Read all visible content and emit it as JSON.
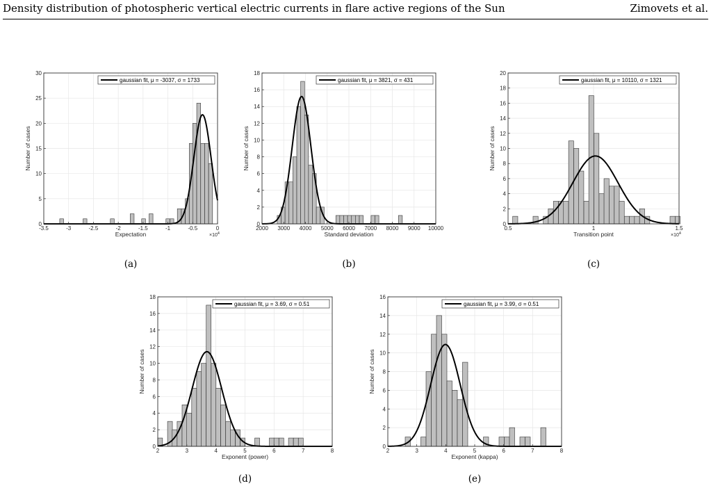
{
  "header": {
    "title": "Density distribution of photospheric vertical electric currents in flare active regions of the Sun",
    "authors": "Zimovets et al."
  },
  "chart_data": [
    {
      "type": "bar",
      "id": "a",
      "caption": "(a)",
      "xlabel": "Expectation",
      "ylabel": "Number of cases",
      "xlim": [
        -35000,
        0
      ],
      "ylim": [
        0,
        30
      ],
      "xticks": [
        -35000,
        -30000,
        -25000,
        -20000,
        -15000,
        -10000,
        -5000,
        0
      ],
      "xtick_labels": [
        "-3.5",
        "-3",
        "-2.5",
        "-2",
        "-1.5",
        "-1",
        "-0.5",
        "0"
      ],
      "yticks": [
        0,
        5,
        10,
        15,
        20,
        25,
        30
      ],
      "xexp_label": "×10",
      "xexp_power": "4",
      "grid": true,
      "legend_position": "top-right",
      "legend": "gaussian fit, μ = -3037, σ = 1733",
      "fit": {
        "mu": -3037,
        "sigma": 1733,
        "peak": 21.7
      },
      "bin_width": 784,
      "bins": [
        -31400,
        -26700,
        -21200,
        -17200,
        -14900,
        -13400,
        -10000,
        -9200,
        -7700,
        -6900,
        -6100,
        -5300,
        -4600,
        -3800,
        -3000,
        -2200,
        -1400
      ],
      "values": [
        1,
        1,
        1,
        2,
        1,
        2,
        1,
        1,
        3,
        3,
        5,
        16,
        20,
        24,
        16,
        16,
        12
      ]
    },
    {
      "type": "bar",
      "id": "b",
      "caption": "(b)",
      "xlabel": "Standard deviation",
      "ylabel": "Number of cases",
      "xlim": [
        2000,
        10000
      ],
      "ylim": [
        0,
        18
      ],
      "xticks": [
        2000,
        3000,
        4000,
        5000,
        6000,
        7000,
        8000,
        9000,
        10000
      ],
      "xtick_labels": [
        "2000",
        "3000",
        "4000",
        "5000",
        "6000",
        "7000",
        "8000",
        "9000",
        "10000"
      ],
      "yticks": [
        0,
        2,
        4,
        6,
        8,
        10,
        12,
        14,
        16,
        18
      ],
      "grid": true,
      "legend_position": "top-right",
      "legend": "gaussian fit, μ = 3821, σ = 431",
      "fit": {
        "mu": 3821,
        "sigma": 431,
        "peak": 15.2
      },
      "bin_width": 180,
      "bins": [
        2790,
        2970,
        3150,
        3330,
        3510,
        3690,
        3870,
        4050,
        4230,
        4410,
        4590,
        4770,
        5490,
        5670,
        5850,
        6030,
        6210,
        6390,
        6570,
        7110,
        7290,
        8370
      ],
      "values": [
        1,
        2,
        5,
        5,
        8,
        14,
        17,
        13,
        7,
        6,
        2,
        2,
        1,
        1,
        1,
        1,
        1,
        1,
        1,
        1,
        1,
        1
      ]
    },
    {
      "type": "bar",
      "id": "c",
      "caption": "(c)",
      "xlabel": "Transition point",
      "ylabel": "Number of cases",
      "xlim": [
        5000,
        15000
      ],
      "ylim": [
        0,
        20
      ],
      "xticks": [
        5000,
        10000,
        15000
      ],
      "xtick_labels": [
        "0.5",
        "1",
        "1.5"
      ],
      "yticks": [
        0,
        2,
        4,
        6,
        8,
        10,
        12,
        14,
        16,
        18,
        20
      ],
      "xexp_label": "×10",
      "xexp_power": "4",
      "grid": true,
      "legend_position": "top-right",
      "legend": "gaussian fit, μ = 10110, σ = 1321",
      "fit": {
        "mu": 10110,
        "sigma": 1321,
        "peak": 9
      },
      "bin_width": 296,
      "bins": [
        5420,
        6610,
        7210,
        7500,
        7800,
        8100,
        8390,
        8690,
        8990,
        9280,
        9580,
        9870,
        10170,
        10470,
        10760,
        11060,
        11360,
        11650,
        11950,
        12250,
        12540,
        12840,
        13140,
        14620,
        14920
      ],
      "values": [
        1,
        1,
        1,
        2,
        3,
        3,
        3,
        11,
        10,
        7,
        3,
        17,
        12,
        4,
        6,
        5,
        5,
        3,
        1,
        1,
        1,
        2,
        1,
        1,
        1
      ]
    },
    {
      "type": "bar",
      "id": "d",
      "caption": "(d)",
      "xlabel": "Exponent (power)",
      "ylabel": "Number of cases",
      "xlim": [
        2,
        8
      ],
      "ylim": [
        0,
        18
      ],
      "xticks": [
        2,
        3,
        4,
        5,
        6,
        7,
        8
      ],
      "xtick_labels": [
        "2",
        "3",
        "4",
        "5",
        "6",
        "7",
        "8"
      ],
      "yticks": [
        0,
        2,
        4,
        6,
        8,
        10,
        12,
        14,
        16,
        18
      ],
      "grid": true,
      "legend_position": "top-right",
      "legend": "gaussian fit, μ = 3.69, σ = 0.51",
      "fit": {
        "mu": 3.69,
        "sigma": 0.51,
        "peak": 11.4
      },
      "bin_width": 0.167,
      "bins": [
        2.08,
        2.42,
        2.58,
        2.75,
        2.92,
        3.08,
        3.25,
        3.42,
        3.58,
        3.75,
        3.92,
        4.08,
        4.25,
        4.42,
        4.58,
        4.75,
        4.92,
        5.42,
        5.92,
        6.08,
        6.25,
        6.58,
        6.75,
        6.92
      ],
      "values": [
        1,
        3,
        2,
        3,
        5,
        4,
        7,
        9,
        10,
        17,
        10,
        7,
        5,
        3,
        2,
        2,
        1,
        1,
        1,
        1,
        1,
        1,
        1,
        1
      ]
    },
    {
      "type": "bar",
      "id": "e",
      "caption": "(e)",
      "xlabel": "Exponent (kappa)",
      "ylabel": "Number of cases",
      "xlim": [
        2,
        8
      ],
      "ylim": [
        0,
        16
      ],
      "xticks": [
        2,
        3,
        4,
        5,
        6,
        7,
        8
      ],
      "xtick_labels": [
        "2",
        "3",
        "4",
        "5",
        "6",
        "7",
        "8"
      ],
      "yticks": [
        0,
        2,
        4,
        6,
        8,
        10,
        12,
        14,
        16
      ],
      "grid": true,
      "legend_position": "top-right",
      "legend": "gaussian fit, μ = 3.99, σ = 0.51",
      "fit": {
        "mu": 3.99,
        "sigma": 0.51,
        "peak": 10.9
      },
      "bin_width": 0.18,
      "bins": [
        2.69,
        3.23,
        3.41,
        3.59,
        3.77,
        3.95,
        4.13,
        4.31,
        4.49,
        4.67,
        5.39,
        5.93,
        6.11,
        6.29,
        6.65,
        6.83,
        7.37
      ],
      "values": [
        1,
        1,
        8,
        12,
        14,
        12,
        7,
        6,
        5,
        9,
        1,
        1,
        1,
        2,
        1,
        1,
        2
      ]
    }
  ]
}
